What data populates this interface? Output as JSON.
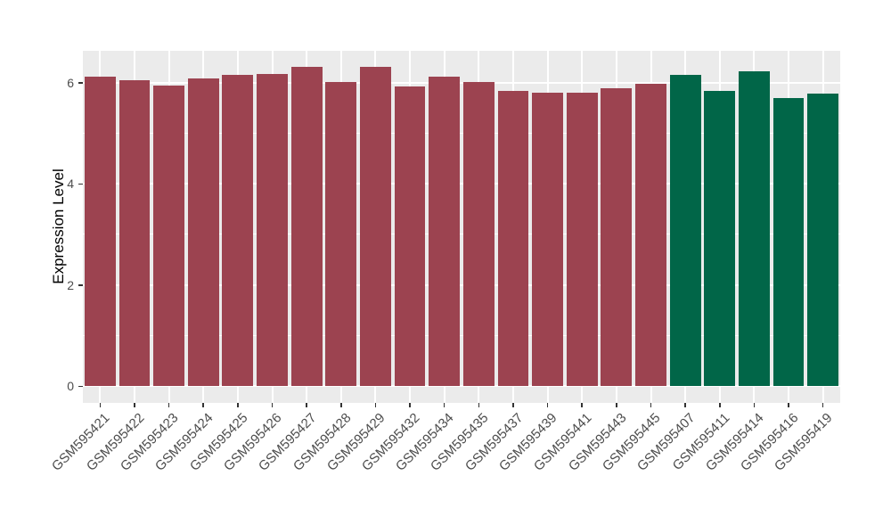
{
  "figure": {
    "background_color": "#FFFFFF",
    "panel_background_color": "#EBEBEB",
    "grid_color": "#FFFFFF",
    "axis_text_color": "#4d4d4d",
    "axis_title_color": "#000000"
  },
  "chart_data": {
    "type": "bar",
    "title": "",
    "xlabel": "",
    "ylabel": "Expression Level",
    "legend": "none",
    "grid": true,
    "categories": [
      "GSM595421",
      "GSM595422",
      "GSM595423",
      "GSM595424",
      "GSM595425",
      "GSM595426",
      "GSM595427",
      "GSM595428",
      "GSM595429",
      "GSM595432",
      "GSM595434",
      "GSM595435",
      "GSM595437",
      "GSM595439",
      "GSM595441",
      "GSM595443",
      "GSM595445",
      "GSM595407",
      "GSM595411",
      "GSM595414",
      "GSM595416",
      "GSM595419"
    ],
    "values": [
      6.11,
      6.05,
      5.94,
      6.08,
      6.15,
      6.17,
      6.32,
      6.02,
      6.32,
      5.93,
      6.11,
      6.02,
      5.83,
      5.8,
      5.81,
      5.89,
      5.98,
      6.15,
      5.83,
      6.23,
      5.7,
      5.79
    ],
    "bar_colors": [
      "#9C4350",
      "#9C4350",
      "#9C4350",
      "#9C4350",
      "#9C4350",
      "#9C4350",
      "#9C4350",
      "#9C4350",
      "#9C4350",
      "#9C4350",
      "#9C4350",
      "#9C4350",
      "#9C4350",
      "#9C4350",
      "#9C4350",
      "#9C4350",
      "#9C4350",
      "#016648",
      "#016648",
      "#016648",
      "#016648",
      "#016648"
    ],
    "group_colors": {
      "first_17_samples": "#9C4350",
      "last_5_samples": "#016648"
    },
    "yticks": [
      0,
      2,
      4,
      6
    ],
    "minor_yticks": [
      1,
      3,
      5
    ],
    "ylim": [
      0,
      6.35
    ],
    "axis_display_min": -0.335,
    "axis_display_max": 6.63,
    "bar_width_fraction": 0.9
  }
}
